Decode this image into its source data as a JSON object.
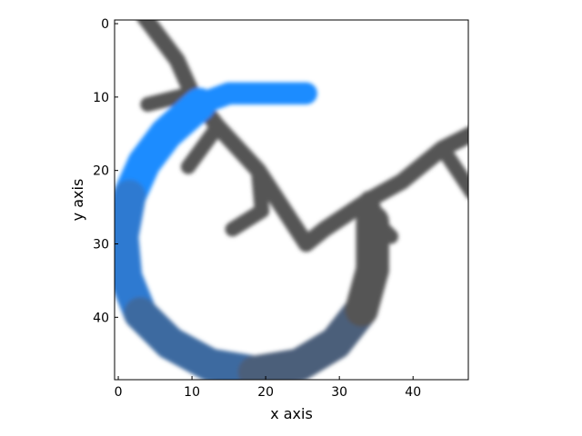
{
  "chart_data": {
    "type": "heatmap",
    "title": "",
    "xlabel": "x axis",
    "ylabel": "y axis",
    "xlim": [
      -0.5,
      47.5
    ],
    "ylim": [
      48.5,
      -0.5
    ],
    "x_ticks": [
      0,
      10,
      20,
      30,
      40
    ],
    "y_ticks": [
      0,
      10,
      20,
      30,
      40
    ],
    "grid": false,
    "background": "#ffffff",
    "tick_direction": "in",
    "strokes": [
      {
        "name": "gray-diagonal-line",
        "color": "#555555",
        "width": 2.2,
        "points": [
          [
            3.5,
            -1
          ],
          [
            8,
            5
          ],
          [
            10,
            9.5
          ],
          [
            13.5,
            14
          ],
          [
            19,
            20
          ],
          [
            25.5,
            30
          ],
          [
            28,
            28
          ],
          [
            34,
            24
          ],
          [
            38.5,
            21.5
          ],
          [
            44,
            17
          ],
          [
            48,
            15
          ]
        ]
      },
      {
        "name": "gray-branch-a",
        "color": "#555555",
        "width": 2.0,
        "points": [
          [
            4,
            11
          ],
          [
            10,
            9.5
          ]
        ]
      },
      {
        "name": "gray-branch-b",
        "color": "#555555",
        "width": 2.0,
        "points": [
          [
            9.5,
            19.5
          ],
          [
            13.5,
            14
          ]
        ]
      },
      {
        "name": "gray-branch-c",
        "color": "#555555",
        "width": 2.0,
        "points": [
          [
            15.5,
            28
          ],
          [
            19.5,
            25.5
          ],
          [
            19,
            20
          ]
        ]
      },
      {
        "name": "gray-branch-d",
        "color": "#555555",
        "width": 2.0,
        "points": [
          [
            44,
            17
          ],
          [
            48,
            23
          ]
        ]
      },
      {
        "name": "gray-blob-right",
        "color": "#555555",
        "width": 2.4,
        "points": [
          [
            34,
            24
          ],
          [
            35.5,
            28
          ],
          [
            35.5,
            33
          ],
          [
            33.5,
            37
          ]
        ]
      },
      {
        "name": "gray-branch-e",
        "color": "#555555",
        "width": 2.0,
        "points": [
          [
            33,
            25
          ],
          [
            37,
            29
          ]
        ]
      },
      {
        "name": "blue-hook-bar",
        "color": "#1a8cff",
        "width": 3.0,
        "points": [
          [
            25.5,
            9.5
          ],
          [
            15,
            9.5
          ],
          [
            11,
            11
          ]
        ]
      },
      {
        "name": "blue-arc",
        "colors": [
          "#1a8cff",
          "#2f7ad1",
          "#3d6aa0",
          "#4c5f7a",
          "#555555"
        ],
        "width": 4.5,
        "points": [
          [
            11,
            11
          ],
          [
            6.5,
            15
          ],
          [
            3.5,
            19
          ],
          [
            1.5,
            23.5
          ],
          [
            0.5,
            29
          ],
          [
            1,
            34.5
          ],
          [
            3,
            39.5
          ],
          [
            7,
            43.5
          ],
          [
            12.5,
            46.5
          ],
          [
            18.5,
            47.5
          ],
          [
            24.5,
            46.5
          ],
          [
            29.5,
            43.5
          ],
          [
            33,
            39
          ],
          [
            34.5,
            33.5
          ],
          [
            34.5,
            27
          ]
        ]
      }
    ]
  }
}
